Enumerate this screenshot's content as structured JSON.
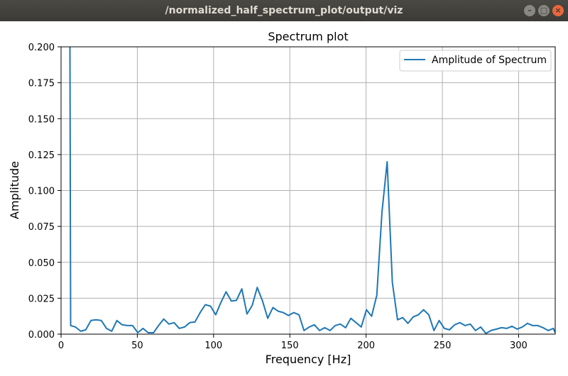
{
  "window": {
    "title": "/normalized_half_spectrum_plot/output/viz",
    "minimize_glyph": "–",
    "maximize_glyph": "□",
    "close_glyph": "×"
  },
  "chart_data": {
    "type": "line",
    "title": "Spectrum plot",
    "xlabel": "Frequency [Hz]",
    "ylabel": "Amplitude",
    "xlim": [
      0,
      324
    ],
    "ylim": [
      0,
      0.2
    ],
    "x_ticks": [
      0,
      50,
      100,
      150,
      200,
      250,
      300
    ],
    "x_tick_labels": [
      "0",
      "50",
      "100",
      "150",
      "200",
      "250",
      "300"
    ],
    "y_ticks": [
      0,
      0.025,
      0.05,
      0.075,
      0.1,
      0.125,
      0.15,
      0.175,
      0.2
    ],
    "y_tick_labels": [
      "0.000",
      "0.025",
      "0.050",
      "0.075",
      "0.100",
      "0.125",
      "0.150",
      "0.175",
      "0.200"
    ],
    "grid": true,
    "legend_position": "top-right",
    "series": [
      {
        "name": "Amplitude of Spectrum",
        "color": "#1f77b4",
        "x": [
          5.8,
          6.3,
          9.4,
          12.9,
          16.2,
          19.6,
          22.9,
          26.4,
          29.8,
          33.2,
          36.6,
          40.0,
          43.5,
          46.9,
          50.3,
          53.7,
          57.1,
          60.6,
          63.9,
          67.3,
          70.7,
          74.1,
          77.5,
          81.0,
          84.4,
          87.8,
          91.2,
          94.6,
          98.0,
          101.4,
          104.8,
          108.2,
          111.7,
          115.0,
          118.5,
          121.9,
          125.3,
          128.6,
          132.1,
          135.5,
          138.9,
          142.3,
          145.7,
          149.1,
          152.5,
          156.0,
          159.3,
          162.7,
          166.1,
          169.5,
          172.9,
          176.4,
          179.7,
          183.1,
          186.6,
          190.0,
          193.4,
          196.8,
          200.2,
          203.6,
          207.0,
          210.4,
          213.8,
          217.2,
          220.6,
          224.0,
          227.4,
          230.9,
          234.3,
          237.7,
          241.1,
          244.5,
          247.9,
          251.3,
          254.7,
          258.1,
          261.5,
          264.9,
          268.3,
          271.7,
          275.1,
          278.5,
          281.9,
          285.4,
          288.8,
          292.2,
          295.6,
          299.0,
          302.4,
          305.8,
          309.2,
          312.6,
          316.0,
          319.4,
          322.8,
          324.0
        ],
        "y": [
          0.2,
          0.006,
          0.005,
          0.002,
          0.003,
          0.0095,
          0.01,
          0.0095,
          0.004,
          0.002,
          0.0095,
          0.0065,
          0.006,
          0.006,
          0.001,
          0.004,
          0.001,
          0.001,
          0.006,
          0.0105,
          0.007,
          0.008,
          0.004,
          0.005,
          0.008,
          0.0085,
          0.015,
          0.0205,
          0.0195,
          0.0135,
          0.022,
          0.0295,
          0.023,
          0.0235,
          0.0315,
          0.014,
          0.02,
          0.0325,
          0.023,
          0.011,
          0.0185,
          0.016,
          0.015,
          0.013,
          0.015,
          0.0135,
          0.0025,
          0.005,
          0.0065,
          0.0025,
          0.0045,
          0.0025,
          0.006,
          0.007,
          0.0045,
          0.011,
          0.008,
          0.005,
          0.017,
          0.0125,
          0.027,
          0.085,
          0.12,
          0.036,
          0.01,
          0.0115,
          0.0075,
          0.012,
          0.0135,
          0.017,
          0.0135,
          0.0025,
          0.0095,
          0.004,
          0.003,
          0.0065,
          0.008,
          0.006,
          0.007,
          0.0025,
          0.005,
          0.0005,
          0.0025,
          0.0035,
          0.0045,
          0.004,
          0.0055,
          0.0035,
          0.005,
          0.0075,
          0.006,
          0.006,
          0.0045,
          0.0025,
          0.004,
          0.001
        ]
      }
    ]
  }
}
